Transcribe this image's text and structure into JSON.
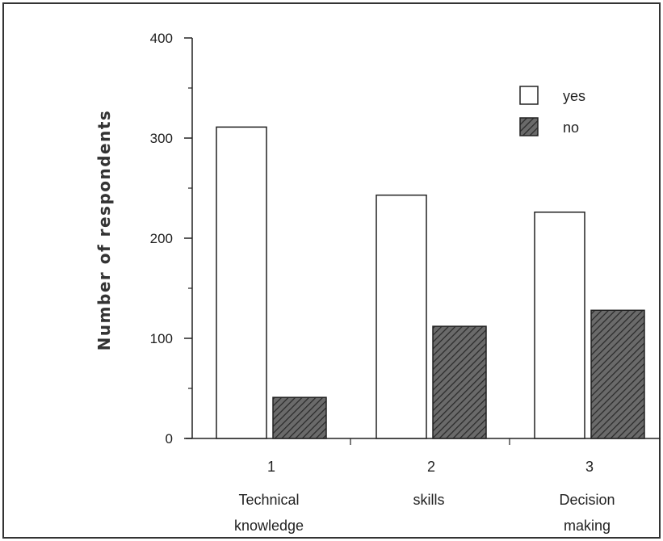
{
  "chart_data": {
    "type": "bar",
    "title": "",
    "xlabel": "",
    "ylabel": "Number of respondents",
    "ylim": [
      0,
      400
    ],
    "yticks": [
      0,
      100,
      200,
      300,
      400
    ],
    "categories": [
      {
        "number": "1",
        "lines": [
          "Technical",
          "knowledge"
        ]
      },
      {
        "number": "2",
        "lines": [
          "skills"
        ]
      },
      {
        "number": "3",
        "lines": [
          "Decision",
          "making"
        ]
      }
    ],
    "series": [
      {
        "name": "yes",
        "values": [
          311,
          243,
          226
        ],
        "fill": "#ffffff",
        "pattern": "none"
      },
      {
        "name": "no",
        "values": [
          41,
          112,
          128
        ],
        "fill": "#555555",
        "pattern": "diagonal-hatch"
      }
    ],
    "legend": "top-right",
    "grid": false
  }
}
